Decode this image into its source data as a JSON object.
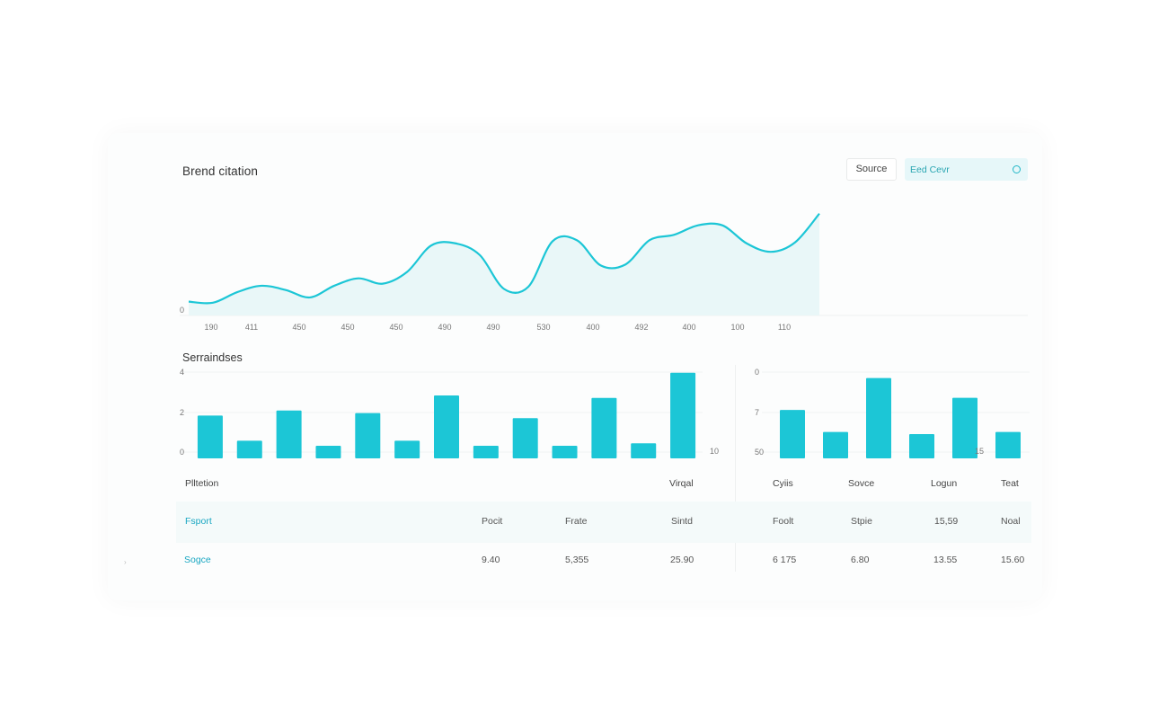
{
  "header": {
    "title": "Brend citation",
    "source_button": "Source",
    "search_value": "Eed Cevr"
  },
  "icons": {
    "search": "search-icon"
  },
  "colors": {
    "accent": "#1cc6d6",
    "fill": "#e9f7f8",
    "row_bg": "#f4fafa",
    "link": "#1aa7c2"
  },
  "line_chart": {
    "chart_data": {
      "type": "area",
      "y_tick_labels": [
        "0"
      ],
      "x_tick_labels": [
        "190",
        "411",
        "450",
        "450",
        "450",
        "490",
        "490",
        "530",
        "400",
        "492",
        "400",
        "100",
        "110"
      ],
      "values": [
        0.13,
        0.12,
        0.22,
        0.28,
        0.24,
        0.17,
        0.28,
        0.35,
        0.3,
        0.41,
        0.66,
        0.68,
        0.57,
        0.25,
        0.27,
        0.7,
        0.71,
        0.47,
        0.48,
        0.71,
        0.76,
        0.85,
        0.85,
        0.68,
        0.6,
        0.69,
        0.96
      ],
      "ylim": [
        0,
        1
      ],
      "grid": false
    }
  },
  "section2": {
    "title": "Serraindses"
  },
  "bar_chart_left": {
    "chart_data": {
      "type": "bar",
      "y_tick_labels": [
        "4",
        "2",
        "0"
      ],
      "right_label": "10",
      "values": [
        1.7,
        0.7,
        1.9,
        0.5,
        1.8,
        0.7,
        2.5,
        0.5,
        1.6,
        0.5,
        2.4,
        0.6,
        3.4
      ],
      "ylim": [
        0,
        4
      ]
    }
  },
  "bar_chart_right": {
    "chart_data": {
      "type": "bar",
      "y_tick_labels": [
        "0",
        "7",
        "50"
      ],
      "right_label": "15",
      "values": [
        4.4,
        2.4,
        7.3,
        2.2,
        5.5,
        2.4
      ],
      "ylim": [
        0,
        8
      ]
    }
  },
  "table": {
    "headers": [
      "Plltetion",
      "Virqal",
      "Cyiis",
      "Sovce",
      "Logun",
      "Teat"
    ],
    "rows": [
      [
        "Fsport",
        "Pocit",
        "Frate",
        "Sintd",
        "Foolt",
        "Stpie",
        "15,59",
        "Noal"
      ],
      [
        "Sogce",
        "9.40",
        "5,355",
        "25.90",
        "6 175",
        "6.80",
        "13.55",
        "15.60"
      ]
    ]
  }
}
